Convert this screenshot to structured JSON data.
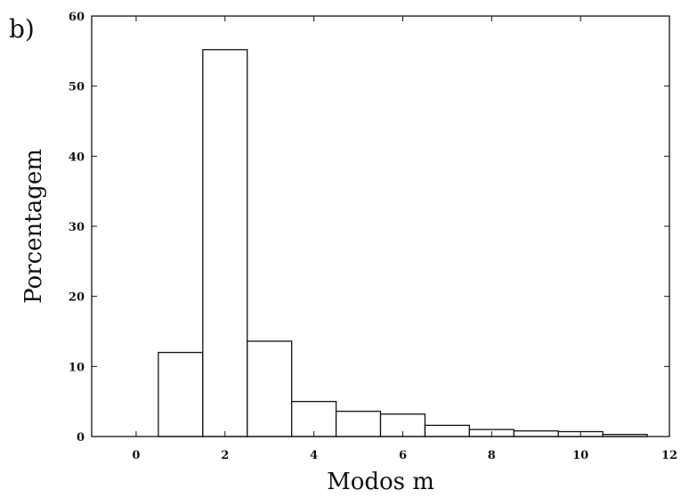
{
  "chart_data": {
    "type": "bar",
    "panel_label": "b)",
    "xlabel": "Modos m",
    "ylabel": "Porcentagem",
    "xlim": [
      -1,
      12
    ],
    "ylim": [
      0,
      60
    ],
    "xticks": [
      0,
      2,
      4,
      6,
      8,
      10,
      12
    ],
    "yticks": [
      0,
      10,
      20,
      30,
      40,
      50,
      60
    ],
    "bin_width": 1,
    "x": [
      1,
      2,
      3,
      4,
      5,
      6,
      7,
      8,
      9,
      10,
      11
    ],
    "values": [
      12,
      55.2,
      13.6,
      5.0,
      3.6,
      3.2,
      1.6,
      1.0,
      0.8,
      0.7,
      0.3
    ],
    "grid": false,
    "bar_fill": "#ffffff",
    "bar_stroke": "#111111"
  }
}
